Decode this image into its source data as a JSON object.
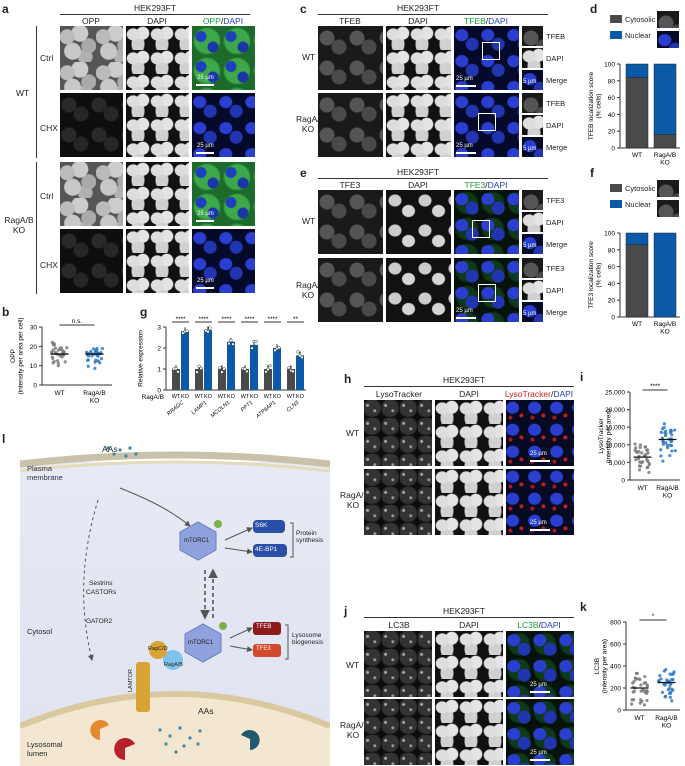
{
  "panels": {
    "a": {
      "label": "a",
      "cell_line": "HEK293FT",
      "columns": [
        "OPP",
        "DAPI"
      ],
      "merge_label": [
        "OPP",
        "/",
        "DAPI"
      ],
      "genotypes": [
        "WT",
        "RagA/B KO"
      ],
      "treatments": [
        "Ctrl",
        "CHX"
      ],
      "scale": "25 µm",
      "colors": {
        "green": "#1a9a3a",
        "blue": "#1f3fbf"
      }
    },
    "b": {
      "label": "b"
    },
    "c": {
      "label": "c",
      "cell_line": "HEK293FT",
      "columns": [
        "TFEB",
        "DAPI"
      ],
      "merge_label": [
        "TFEB",
        "/",
        "DAPI"
      ],
      "rows": [
        "WT",
        "RagA/B KO"
      ],
      "inset_labels": [
        "TFEB",
        "DAPI",
        "Merge"
      ],
      "scale": "25 µm",
      "inset_scale": "5 µm"
    },
    "d": {
      "label": "d"
    },
    "e": {
      "label": "e",
      "cell_line": "HEK293FT",
      "columns": [
        "TFE3",
        "DAPI"
      ],
      "merge_label": [
        "TFE3",
        "/",
        "DAPI"
      ],
      "rows": [
        "WT",
        "RagA/B KO"
      ],
      "inset_labels": [
        "TFE3",
        "DAPI",
        "Merge"
      ],
      "scale": "25 µm",
      "inset_scale": "5 µm"
    },
    "f": {
      "label": "f"
    },
    "g": {
      "label": "g"
    },
    "h": {
      "label": "h",
      "cell_line": "HEK293FT",
      "columns": [
        "LysoTracker",
        "DAPI"
      ],
      "merge_label": [
        "LysoTracker",
        "/",
        "DAPI"
      ],
      "rows": [
        "WT",
        "RagA/B KO"
      ],
      "scale": "25 µm",
      "colors": {
        "red": "#d02020"
      }
    },
    "i": {
      "label": "i"
    },
    "j": {
      "label": "j",
      "cell_line": "HEK293FT",
      "columns": [
        "LC3B",
        "DAPI"
      ],
      "merge_label": [
        "LC3B",
        "/",
        "DAPI"
      ],
      "rows": [
        "WT",
        "RagA/B KO"
      ],
      "scale": "25 µm"
    },
    "k": {
      "label": "k"
    },
    "l": {
      "label": "l",
      "texts": {
        "plasma_membrane": "Plasma membrane",
        "aas_top": "AAs",
        "mtorc1": "mTORC1",
        "s6k": "S6K",
        "4ebp1": "4E-BP1",
        "protein_synthesis": "Protein synthesis",
        "sestrins": "Sestrins",
        "castors": "CASTORs",
        "gator2": "GATOR2",
        "cytosol": "Cytosol",
        "ragcd": "RagC/D",
        "ragab": "RagA/B",
        "lamtor": "LAMTOR",
        "tfeb": "TFEB",
        "tfe3": "TFE3",
        "lysosome_biogenesis": "Lysosome biogenesis",
        "lysosomal_lumen": "Lysosomal lumen",
        "aas_bottom": "AAs"
      }
    }
  },
  "chart_data": [
    {
      "id": "b",
      "type": "scatter",
      "categories": [
        "WT",
        "RagA/B KO"
      ],
      "ylabel": "OPP\n(intensity per area per cell)",
      "ylim": [
        0,
        30
      ],
      "yticks": [
        0,
        10,
        20,
        30
      ],
      "means": [
        16,
        16
      ],
      "significance": "n.s.",
      "colors": [
        "#7a7a7a",
        "#2f79c6"
      ]
    },
    {
      "id": "d",
      "type": "bar",
      "stacked": true,
      "categories": [
        "WT",
        "RagA/B KO"
      ],
      "series": [
        {
          "name": "Cytosolic",
          "values": [
            84,
            16
          ],
          "color": "#4a4a4a"
        },
        {
          "name": "Nuclear",
          "values": [
            16,
            84
          ],
          "color": "#0a5aa8"
        }
      ],
      "ylabel": "TFEB localization score\n(% cells)",
      "ylim": [
        0,
        100
      ],
      "yticks": [
        0,
        20,
        40,
        60,
        80,
        100
      ],
      "legend": "top"
    },
    {
      "id": "f",
      "type": "bar",
      "stacked": true,
      "categories": [
        "WT",
        "RagA/B KO"
      ],
      "series": [
        {
          "name": "Cytosolic",
          "values": [
            86,
            0
          ],
          "color": "#4a4a4a"
        },
        {
          "name": "Nuclear",
          "values": [
            14,
            100
          ],
          "color": "#0a5aa8"
        }
      ],
      "ylabel": "TFE3 localization score\n(% cells)",
      "ylim": [
        0,
        100
      ],
      "yticks": [
        0,
        20,
        40,
        60,
        80,
        100
      ],
      "legend": "top"
    },
    {
      "id": "g",
      "type": "bar",
      "categories": [
        "RRAGC",
        "LAMP1",
        "MCOLN1",
        "PPT1",
        "ATP6AP1",
        "CLN3"
      ],
      "series": [
        {
          "name": "WT",
          "values": [
            1,
            1,
            1,
            1,
            1,
            1
          ],
          "color": "#4a4a4a"
        },
        {
          "name": "KO",
          "values": [
            2.8,
            2.85,
            2.3,
            2.15,
            2.0,
            1.65
          ],
          "color": "#0a5aa8"
        }
      ],
      "ylabel": "Relative expression",
      "xrow_label": "RagA/B",
      "sub_labels": [
        "WT",
        "KO"
      ],
      "ylim": [
        0,
        3
      ],
      "yticks": [
        0,
        1,
        2,
        3
      ],
      "significance": [
        "****",
        "****",
        "****",
        "****",
        "****",
        "**"
      ]
    },
    {
      "id": "i",
      "type": "scatter",
      "categories": [
        "WT",
        "RagA/B KO"
      ],
      "ylabel": "LysoTracker\n(intensity per area)",
      "ylim": [
        0,
        25000
      ],
      "yticks": [
        0,
        5000,
        10000,
        15000,
        20000,
        25000
      ],
      "ytick_labels": [
        "0",
        "5,000",
        "10,000",
        "15,000",
        "20,000",
        "25,000"
      ],
      "means": [
        6500,
        11500
      ],
      "significance": "****",
      "colors": [
        "#7a7a7a",
        "#2f79c6"
      ]
    },
    {
      "id": "k",
      "type": "scatter",
      "categories": [
        "WT",
        "RagA/B KO"
      ],
      "ylabel": "LC3B\n(intensity per area)",
      "ylim": [
        0,
        800
      ],
      "yticks": [
        0,
        200,
        400,
        600,
        800
      ],
      "means": [
        200,
        250
      ],
      "significance": "*",
      "colors": [
        "#7a7a7a",
        "#2f79c6"
      ]
    }
  ]
}
